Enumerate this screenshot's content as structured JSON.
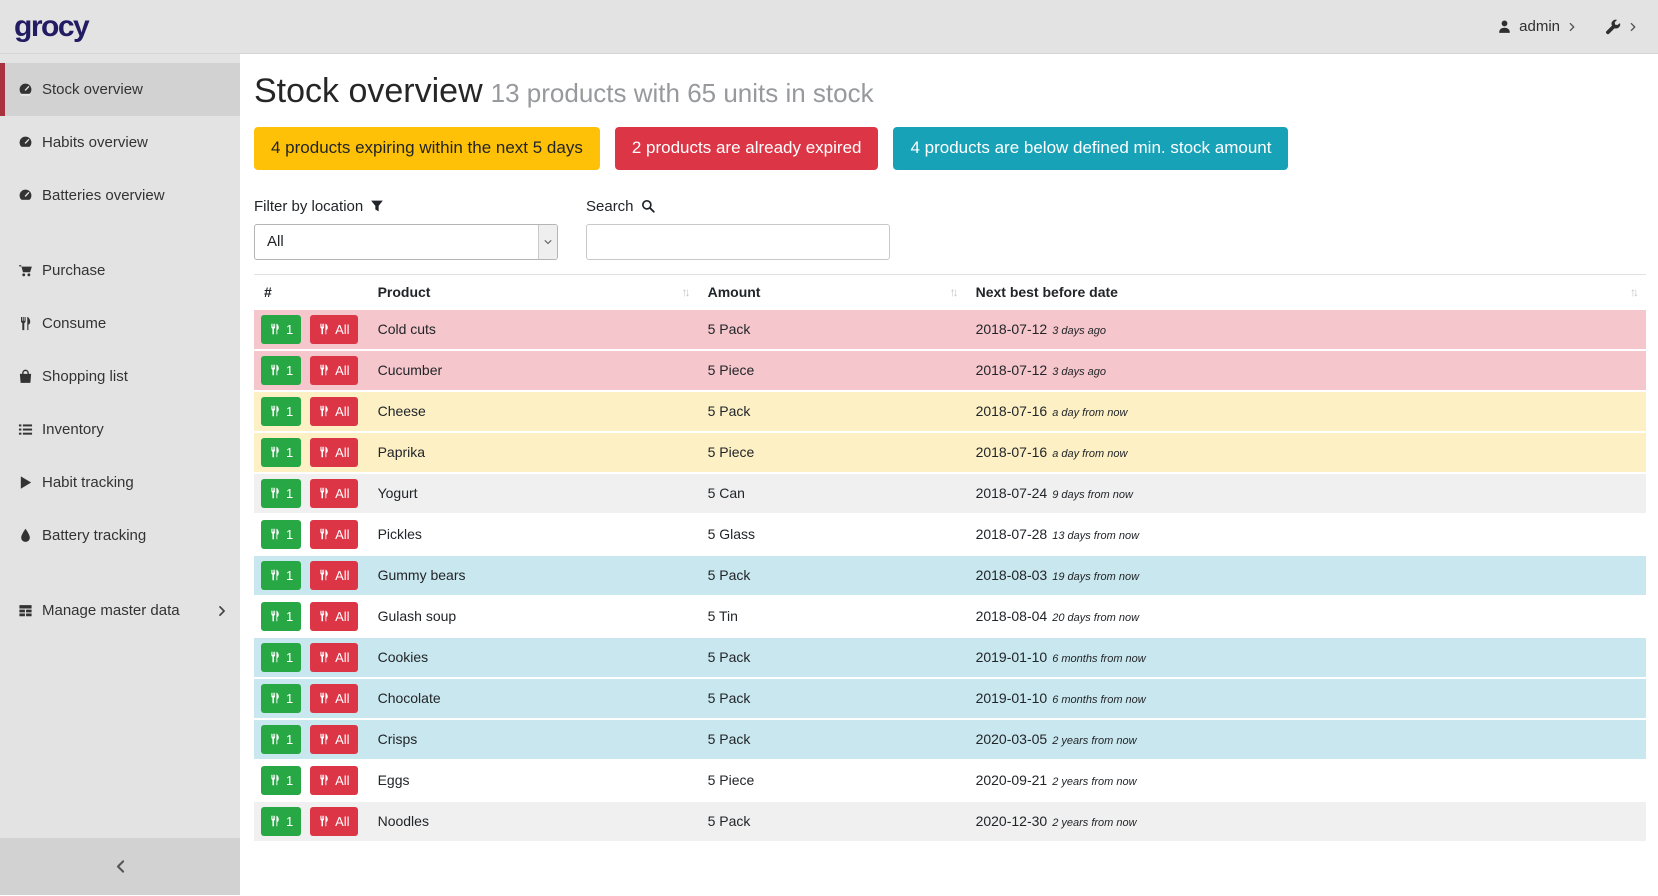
{
  "navbar": {
    "logo": "grocy",
    "user_label": "admin"
  },
  "sidebar": {
    "groups": [
      {
        "items": [
          {
            "label": "Stock overview",
            "icon": "tachometer-icon",
            "active": true
          },
          {
            "label": "Habits overview",
            "icon": "tachometer-icon"
          },
          {
            "label": "Batteries overview",
            "icon": "tachometer-icon"
          }
        ]
      },
      {
        "items": [
          {
            "label": "Purchase",
            "icon": "cart-icon"
          },
          {
            "label": "Consume",
            "icon": "cutlery-icon"
          },
          {
            "label": "Shopping list",
            "icon": "shopping-bag-icon"
          },
          {
            "label": "Inventory",
            "icon": "list-icon"
          },
          {
            "label": "Habit tracking",
            "icon": "play-icon"
          },
          {
            "label": "Battery tracking",
            "icon": "tint-icon"
          }
        ]
      },
      {
        "items": [
          {
            "label": "Manage master data",
            "icon": "table-icon",
            "chevron": true
          }
        ]
      }
    ]
  },
  "header": {
    "title": "Stock overview",
    "subtitle": "13 products with 65 units in stock"
  },
  "badges": [
    {
      "label": "4 products expiring within the next 5 days",
      "type": "warning"
    },
    {
      "label": "2 products are already expired",
      "type": "danger"
    },
    {
      "label": "4 products are below defined min. stock amount",
      "type": "info"
    }
  ],
  "filters": {
    "location_label": "Filter by location",
    "location_value": "All",
    "search_label": "Search",
    "search_value": ""
  },
  "table": {
    "columns": [
      "#",
      "Product",
      "Amount",
      "Next best before date"
    ],
    "consume_one_label": "1",
    "consume_all_label": "All",
    "rows": [
      {
        "product": "Cold cuts",
        "amount": "5 Pack",
        "best_before": "2018-07-12",
        "due_note": "3 days ago",
        "status": "expired"
      },
      {
        "product": "Cucumber",
        "amount": "5 Piece",
        "best_before": "2018-07-12",
        "due_note": "3 days ago",
        "status": "expired"
      },
      {
        "product": "Cheese",
        "amount": "5 Pack",
        "best_before": "2018-07-16",
        "due_note": "a day from now",
        "status": "expiring"
      },
      {
        "product": "Paprika",
        "amount": "5 Piece",
        "best_before": "2018-07-16",
        "due_note": "a day from now",
        "status": "expiring"
      },
      {
        "product": "Yogurt",
        "amount": "5 Can",
        "best_before": "2018-07-24",
        "due_note": "9 days from now",
        "status": "none"
      },
      {
        "product": "Pickles",
        "amount": "5 Glass",
        "best_before": "2018-07-28",
        "due_note": "13 days from now",
        "status": "none"
      },
      {
        "product": "Gummy bears",
        "amount": "5 Pack",
        "best_before": "2018-08-03",
        "due_note": "19 days from now",
        "status": "belowmin"
      },
      {
        "product": "Gulash soup",
        "amount": "5 Tin",
        "best_before": "2018-08-04",
        "due_note": "20 days from now",
        "status": "none"
      },
      {
        "product": "Cookies",
        "amount": "5 Pack",
        "best_before": "2019-01-10",
        "due_note": "6 months from now",
        "status": "belowmin"
      },
      {
        "product": "Chocolate",
        "amount": "5 Pack",
        "best_before": "2019-01-10",
        "due_note": "6 months from now",
        "status": "belowmin"
      },
      {
        "product": "Crisps",
        "amount": "5 Pack",
        "best_before": "2020-03-05",
        "due_note": "2 years from now",
        "status": "belowmin"
      },
      {
        "product": "Eggs",
        "amount": "5 Piece",
        "best_before": "2020-09-21",
        "due_note": "2 years from now",
        "status": "none"
      },
      {
        "product": "Noodles",
        "amount": "5 Pack",
        "best_before": "2020-12-30",
        "due_note": "2 years from now",
        "status": "none"
      }
    ]
  },
  "icons": {
    "sort_glyph": "↑↓"
  },
  "colors": {
    "accent_red": "#a9323f",
    "logo_navy": "#221c63",
    "badge_warning": "#ffc107",
    "badge_danger": "#dc3545",
    "badge_info": "#17a2b8",
    "button_success": "#28a745",
    "button_danger": "#dc3545",
    "row_expired": "#f5c6cb",
    "row_expiring": "#fdf0c5",
    "row_below_min": "#c9e7ee",
    "row_stripe": "#f0f0f0",
    "chrome_gray": "#e3e3e3",
    "chrome_gray_dark": "#d2d2d2"
  }
}
